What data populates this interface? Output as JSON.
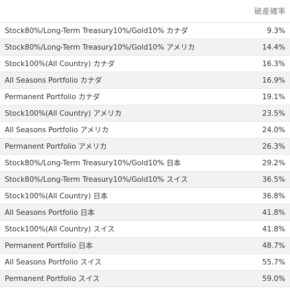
{
  "table": {
    "header": {
      "rate": "破産確率"
    },
    "rows": [
      {
        "name": "Stock80%/Long-Term Treasury10%/Gold10%  カナダ",
        "value": "9.3%"
      },
      {
        "name": "Stock80%/Long-Term Treasury10%/Gold10%  アメリカ",
        "value": "14.4%"
      },
      {
        "name": "Stock100%(All Country)  カナダ",
        "value": "16.3%"
      },
      {
        "name": "All Seasons Portfolio  カナダ",
        "value": "16.9%"
      },
      {
        "name": "Permanent Portfolio  カナダ",
        "value": "19.1%"
      },
      {
        "name": "Stock100%(All Country)  アメリカ",
        "value": "23.5%"
      },
      {
        "name": "All Seasons Portfolio  アメリカ",
        "value": "24.0%"
      },
      {
        "name": "Permanent Portfolio  アメリカ",
        "value": "26.3%"
      },
      {
        "name": "Stock80%/Long-Term Treasury10%/Gold10%  日本",
        "value": "29.2%"
      },
      {
        "name": "Stock80%/Long-Term Treasury10%/Gold10%  スイス",
        "value": "36.5%"
      },
      {
        "name": "Stock100%(All Country)  日本",
        "value": "36.8%"
      },
      {
        "name": "All Seasons Portfolio  日本",
        "value": "41.8%"
      },
      {
        "name": "Stock100%(All Country)  スイス",
        "value": "41.8%"
      },
      {
        "name": "Permanent Portfolio  日本",
        "value": "48.7%"
      },
      {
        "name": "All Seasons Portfolio  スイス",
        "value": "55.7%"
      },
      {
        "name": "Permanent Portfolio  スイス",
        "value": "59.0%"
      }
    ]
  }
}
